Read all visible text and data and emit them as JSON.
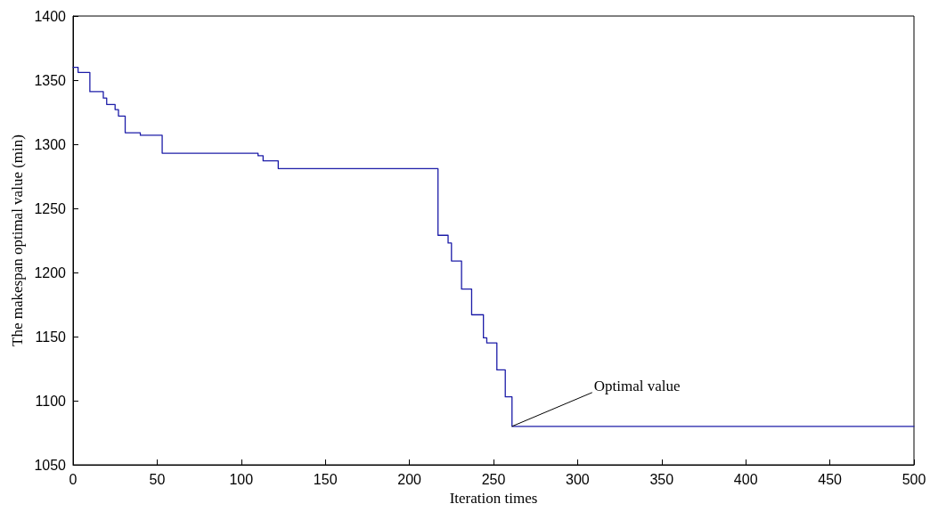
{
  "chart_data": {
    "type": "step",
    "xlabel": "Iteration times",
    "ylabel": "The makespan optimal value (min)",
    "x": [
      0,
      3,
      10,
      18,
      20,
      25,
      27,
      31,
      40,
      53,
      110,
      113,
      122,
      217,
      223,
      225,
      231,
      237,
      244,
      246,
      252,
      257,
      261,
      500
    ],
    "series": [
      {
        "color": "#1c1ca8",
        "values": [
          1360,
          1356,
          1341,
          1336,
          1331,
          1327,
          1322,
          1309,
          1307,
          1293,
          1291,
          1287,
          1281,
          1229,
          1223,
          1209,
          1187,
          1167,
          1149,
          1145,
          1124,
          1103,
          1080,
          1080
        ]
      }
    ],
    "xlim": [
      0,
      500
    ],
    "xticks": [
      0,
      50,
      100,
      150,
      200,
      250,
      300,
      350,
      400,
      450,
      500
    ],
    "ylim": [
      1050,
      1400
    ],
    "yticks": [
      1050,
      1100,
      1150,
      1200,
      1250,
      1300,
      1350,
      1400
    ],
    "annotations": [
      {
        "text": "Optimal value",
        "x": 261,
        "y": 1080
      }
    ],
    "grid": false,
    "marker": "none",
    "line_style": "solid"
  }
}
